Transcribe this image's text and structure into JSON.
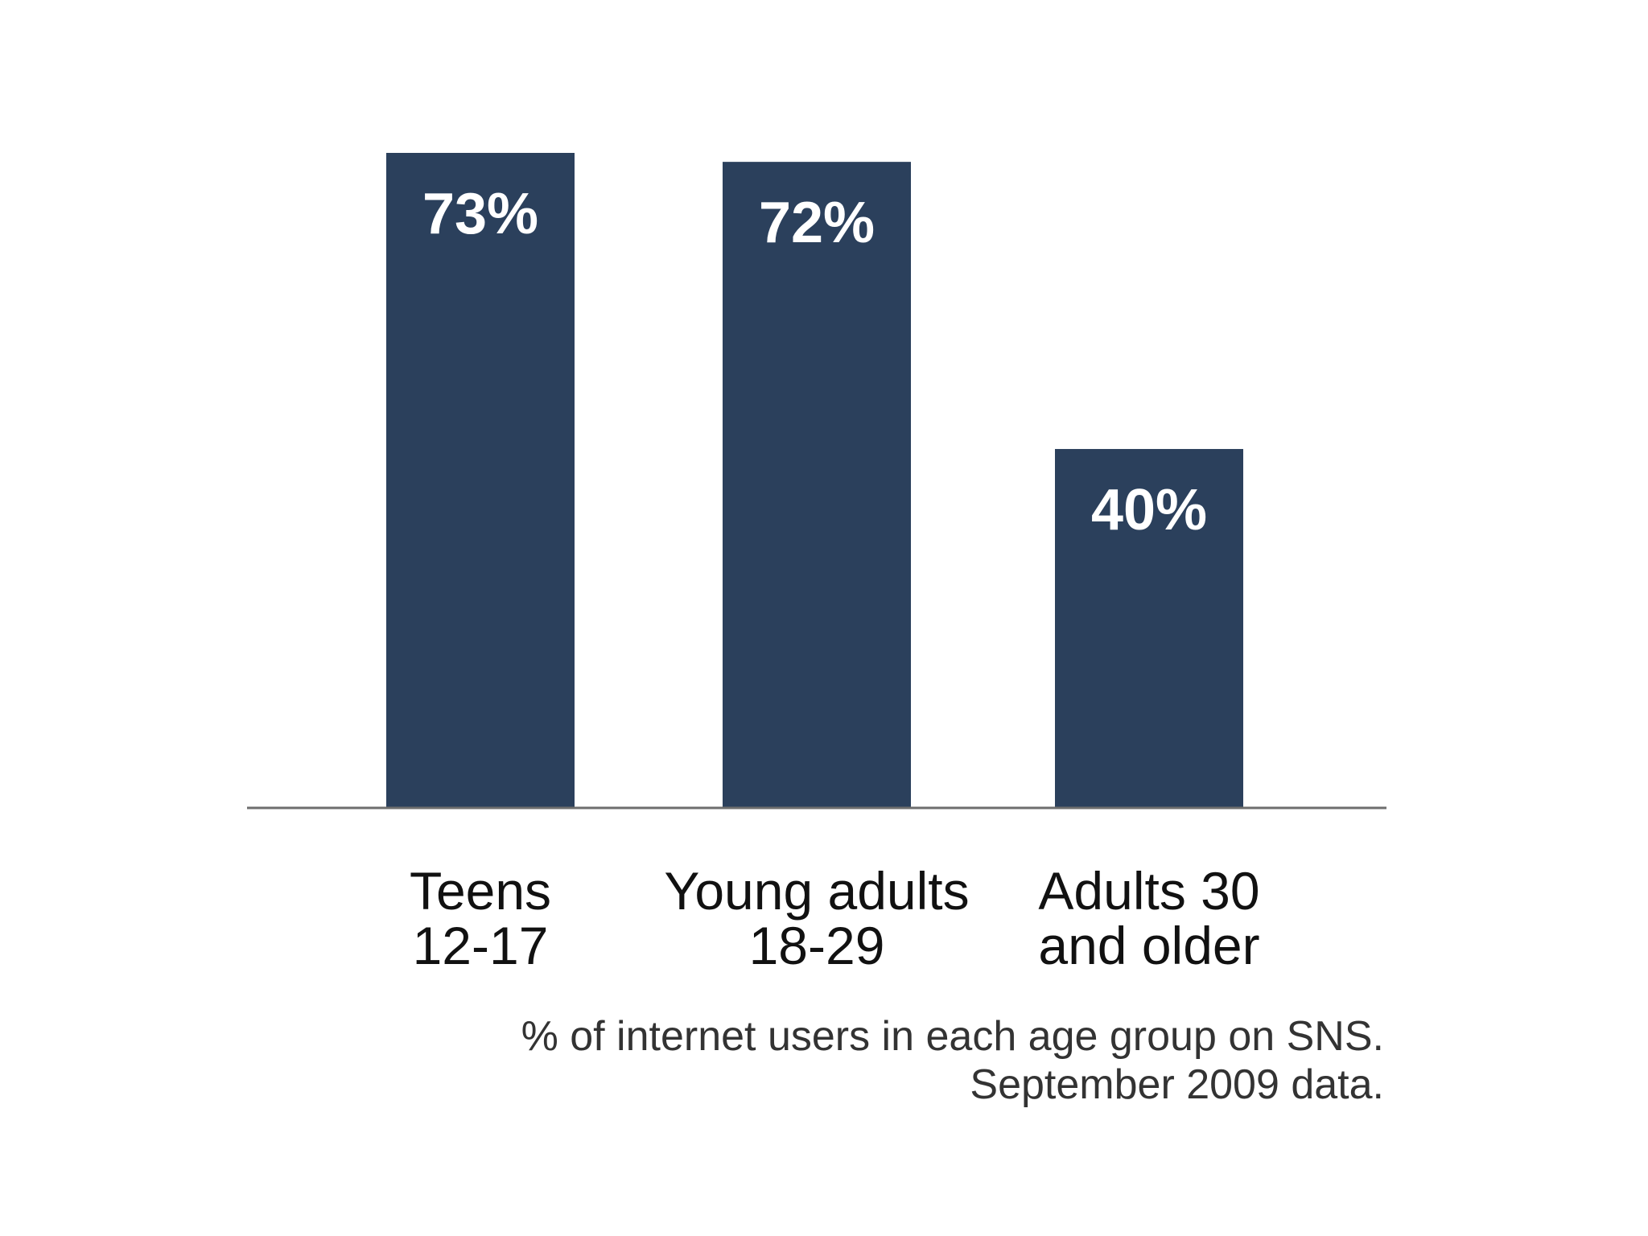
{
  "colors": {
    "bar": "#2b405c",
    "baseline": "#6e6e6e",
    "bar_label": "#ffffff",
    "category_label": "#111111",
    "caption": "#333333",
    "background": "#ffffff"
  },
  "chart_data": {
    "type": "bar",
    "categories": [
      [
        "Teens",
        "12-17"
      ],
      [
        "Young adults",
        "18-29"
      ],
      [
        "Adults 30",
        "and older"
      ]
    ],
    "values": [
      73,
      72,
      40
    ],
    "data_labels": [
      "73%",
      "72%",
      "40%"
    ],
    "ylim": [
      0,
      73
    ],
    "grid": false,
    "legend": "none",
    "caption": [
      "% of internet users in each age group on SNS.",
      "September 2009 data."
    ]
  }
}
